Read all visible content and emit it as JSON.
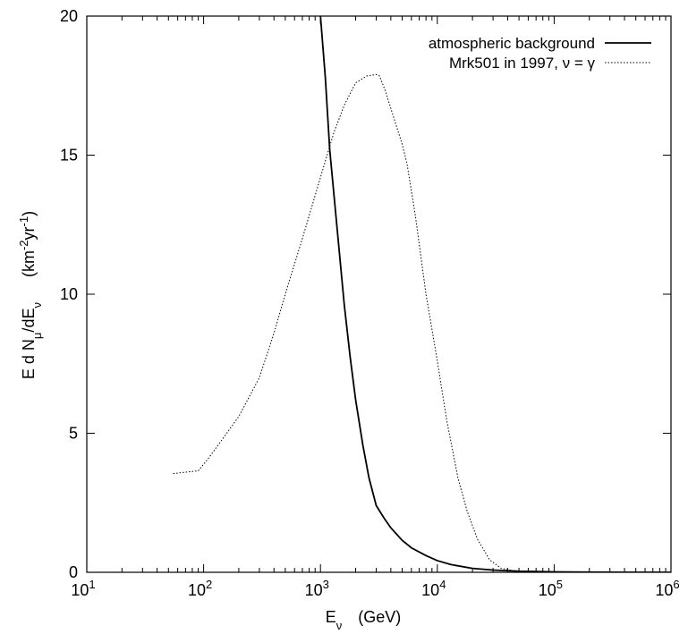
{
  "chart_data": {
    "type": "line",
    "x_scale": "log",
    "xlim": [
      10,
      1000000
    ],
    "ylim": [
      0,
      20
    ],
    "x_ticks": [
      {
        "value": 10,
        "base": "10",
        "exp": "1"
      },
      {
        "value": 100,
        "base": "10",
        "exp": "2"
      },
      {
        "value": 1000,
        "base": "10",
        "exp": "3"
      },
      {
        "value": 10000,
        "base": "10",
        "exp": "4"
      },
      {
        "value": 100000,
        "base": "10",
        "exp": "5"
      },
      {
        "value": 1000000,
        "base": "10",
        "exp": "6"
      }
    ],
    "y_ticks": [
      0,
      5,
      10,
      15,
      20
    ],
    "xlabel": {
      "main": "E",
      "sub": "ν",
      "unit": "(GeV)"
    },
    "ylabel": {
      "part1": "E d N",
      "sub1": "μ",
      "part2": "/dE",
      "sub2": "ν",
      "unit_open": "(km",
      "sup1": "-2",
      "unit_mid": "yr",
      "sup2": "-1",
      "unit_close": ")"
    },
    "grid": false,
    "legend_position": "top-right",
    "series": [
      {
        "name": "atmospheric background",
        "style": "solid",
        "color": "#000000",
        "points": [
          [
            1000,
            20.0
          ],
          [
            1100,
            17.8
          ],
          [
            1200,
            15.2
          ],
          [
            1400,
            12.2
          ],
          [
            1600,
            9.6
          ],
          [
            1800,
            7.7
          ],
          [
            2000,
            6.2
          ],
          [
            2300,
            4.6
          ],
          [
            2600,
            3.4
          ],
          [
            3000,
            2.4
          ],
          [
            3500,
            1.95
          ],
          [
            4000,
            1.6
          ],
          [
            5000,
            1.15
          ],
          [
            6000,
            0.88
          ],
          [
            8000,
            0.6
          ],
          [
            10000,
            0.42
          ],
          [
            13000,
            0.28
          ],
          [
            20000,
            0.14
          ],
          [
            30000,
            0.08
          ],
          [
            50000,
            0.04
          ],
          [
            100000,
            0.015
          ],
          [
            300000,
            0.005
          ],
          [
            1000000,
            0.0
          ]
        ]
      },
      {
        "name": "Mrk501 in 1997, ν = γ",
        "style": "dotted",
        "color": "#000000",
        "points": [
          [
            55,
            3.55
          ],
          [
            70,
            3.6
          ],
          [
            90,
            3.65
          ],
          [
            110,
            4.1
          ],
          [
            140,
            4.7
          ],
          [
            200,
            5.6
          ],
          [
            300,
            7.0
          ],
          [
            400,
            8.6
          ],
          [
            500,
            10.0
          ],
          [
            700,
            12.0
          ],
          [
            1000,
            14.2
          ],
          [
            1300,
            15.8
          ],
          [
            1600,
            16.8
          ],
          [
            2000,
            17.6
          ],
          [
            2500,
            17.85
          ],
          [
            3000,
            17.9
          ],
          [
            3200,
            17.85
          ],
          [
            3600,
            17.3
          ],
          [
            4200,
            16.4
          ],
          [
            5000,
            15.4
          ],
          [
            5500,
            14.7
          ],
          [
            6500,
            12.8
          ],
          [
            8000,
            10.0
          ],
          [
            10000,
            7.6
          ],
          [
            12000,
            5.5
          ],
          [
            15000,
            3.4
          ],
          [
            18000,
            2.2
          ],
          [
            22000,
            1.2
          ],
          [
            28000,
            0.45
          ],
          [
            35000,
            0.15
          ],
          [
            45000,
            0.05
          ],
          [
            60000,
            0.02
          ],
          [
            100000,
            0.0
          ]
        ]
      }
    ]
  }
}
